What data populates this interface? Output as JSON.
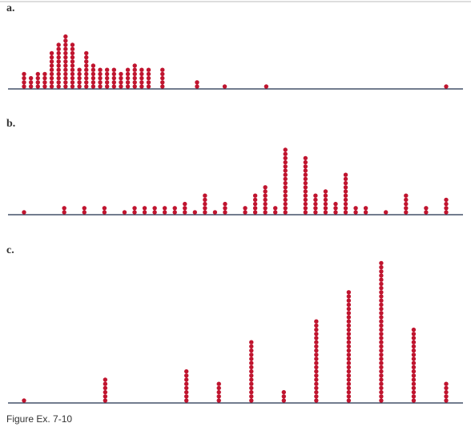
{
  "chart_data": [
    {
      "type": "dot",
      "title": "a.",
      "x": [
        0,
        1,
        2,
        3,
        4,
        5,
        6,
        7,
        8,
        9,
        10,
        11,
        12,
        13,
        14,
        15,
        16,
        17,
        18,
        20,
        25,
        29,
        35,
        61
      ],
      "values": [
        4,
        3,
        4,
        4,
        9,
        11,
        13,
        11,
        5,
        9,
        6,
        5,
        5,
        5,
        4,
        5,
        6,
        5,
        5,
        5,
        2,
        1,
        1,
        1
      ],
      "xlim": [
        0,
        61
      ],
      "color": "#c0152f"
    },
    {
      "type": "dot",
      "title": "b.",
      "x": [
        0,
        4,
        6,
        8,
        10,
        11,
        12,
        13,
        14,
        15,
        16,
        17,
        18,
        19,
        20,
        22,
        23,
        24,
        25,
        26,
        28,
        29,
        30,
        31,
        32,
        33,
        34,
        36,
        38,
        40,
        42
      ],
      "values": [
        1,
        2,
        2,
        2,
        1,
        2,
        2,
        2,
        2,
        2,
        3,
        1,
        5,
        1,
        3,
        2,
        5,
        7,
        2,
        16,
        14,
        5,
        6,
        3,
        10,
        2,
        2,
        1,
        5,
        2,
        4
      ],
      "xlim": [
        0,
        42
      ],
      "color": "#c0152f"
    },
    {
      "type": "dot",
      "title": "c.",
      "x": [
        0,
        5,
        10,
        12,
        14,
        16,
        18,
        20,
        22,
        24,
        26
      ],
      "values": [
        1,
        6,
        8,
        5,
        15,
        3,
        20,
        27,
        34,
        18,
        5
      ],
      "xlim": [
        0,
        26
      ],
      "color": "#c0152f"
    }
  ],
  "caption": "Figure Ex. 7-10"
}
